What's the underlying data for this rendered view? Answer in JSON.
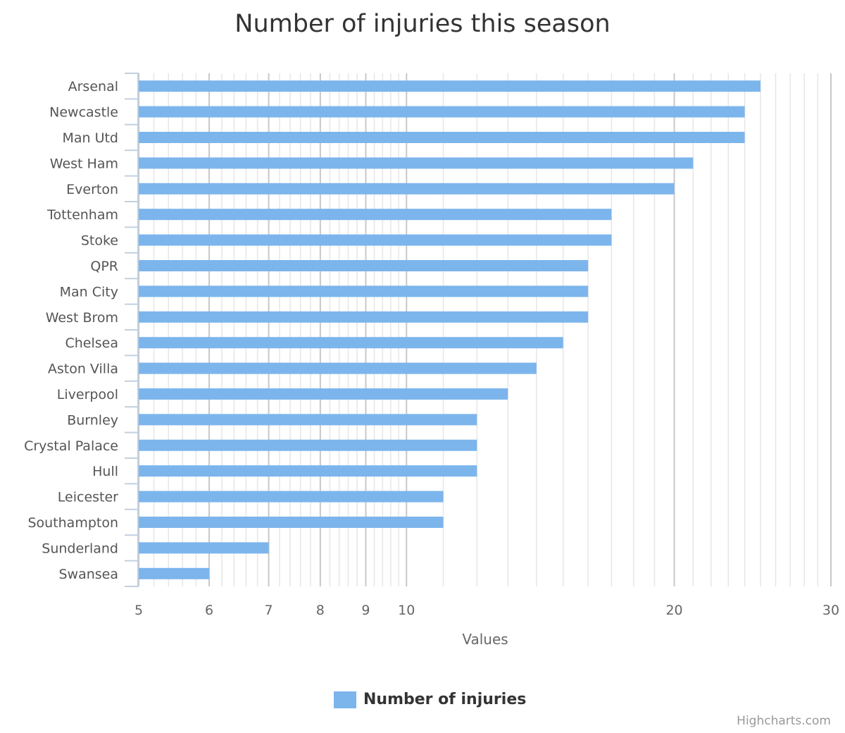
{
  "chart_data": {
    "type": "bar",
    "orientation": "horizontal",
    "title": "Number of injuries this season",
    "xlabel": "Values",
    "ylabel": "",
    "x_scale": "log",
    "xlim": [
      5,
      30
    ],
    "x_ticks": [
      5,
      6,
      7,
      8,
      9,
      10,
      20,
      30
    ],
    "grid": true,
    "legend_position": "bottom-center",
    "categories": [
      "Arsenal",
      "Newcastle",
      "Man Utd",
      "West Ham",
      "Everton",
      "Tottenham",
      "Stoke",
      "QPR",
      "Man City",
      "West Brom",
      "Chelsea",
      "Aston Villa",
      "Liverpool",
      "Burnley",
      "Crystal Palace",
      "Hull",
      "Leicester",
      "Southampton",
      "Sunderland",
      "Swansea"
    ],
    "series": [
      {
        "name": "Number of injuries",
        "color": "#7cb5ec",
        "values": [
          25,
          24,
          24,
          21,
          20,
          17,
          17,
          16,
          16,
          16,
          15,
          14,
          13,
          12,
          12,
          12,
          11,
          11,
          7,
          6
        ]
      }
    ]
  },
  "credits": "Highcharts.com"
}
